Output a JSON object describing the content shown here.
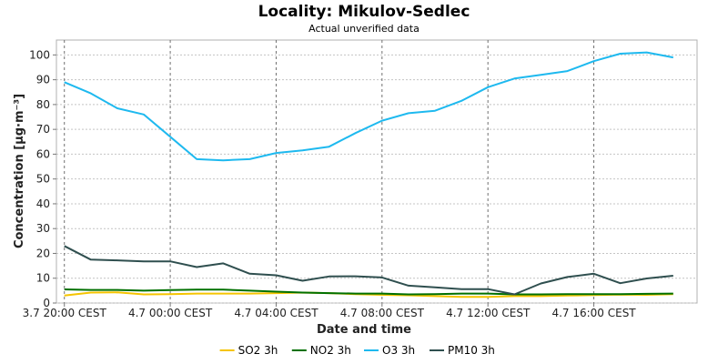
{
  "chart_data": {
    "type": "line",
    "title": "Locality: Mikulov-Sedlec",
    "subtitle": "Actual unverified data",
    "xlabel": "Date and time",
    "ylabel": "Concentration [µg·m⁻³]",
    "x_ticks": [
      {
        "label": "3.7 20:00 CEST",
        "hour": 0
      },
      {
        "label": "4.7 00:00 CEST",
        "hour": 4
      },
      {
        "label": "4.7 04:00 CEST",
        "hour": 8
      },
      {
        "label": "4.7 08:00 CEST",
        "hour": 12
      },
      {
        "label": "4.7 12:00 CEST",
        "hour": 16
      },
      {
        "label": "4.7 16:00 CEST",
        "hour": 20
      }
    ],
    "xlim": [
      -0.3,
      23.9
    ],
    "ylim": [
      0,
      106
    ],
    "y_ticks": [
      0,
      10,
      20,
      30,
      40,
      50,
      60,
      70,
      80,
      90,
      100
    ],
    "grid": true,
    "legend_position": "bottom",
    "x": [
      0,
      1,
      2,
      3,
      4,
      5,
      6,
      7,
      8,
      9,
      10,
      11,
      12,
      13,
      14,
      15,
      16,
      17,
      18,
      19,
      20,
      21,
      22,
      23
    ],
    "series": [
      {
        "name": "SO2 3h",
        "color": "#f5c400",
        "values": [
          3.0,
          4.2,
          4.3,
          3.5,
          3.6,
          3.8,
          3.8,
          3.8,
          4.0,
          4.2,
          4.0,
          3.6,
          3.3,
          3.1,
          2.8,
          2.5,
          2.5,
          2.8,
          2.8,
          3.0,
          3.2,
          3.4,
          3.3,
          3.6
        ]
      },
      {
        "name": "NO2 3h",
        "color": "#007000",
        "values": [
          5.5,
          5.3,
          5.3,
          5.0,
          5.2,
          5.4,
          5.4,
          5.0,
          4.6,
          4.2,
          4.0,
          3.8,
          3.8,
          3.5,
          3.6,
          3.8,
          3.8,
          3.5,
          3.5,
          3.6,
          3.6,
          3.6,
          3.7,
          3.8
        ]
      },
      {
        "name": "O3 3h",
        "color": "#1eb9ef",
        "values": [
          89.0,
          84.5,
          78.5,
          76.0,
          67.0,
          58.0,
          57.5,
          58.0,
          60.5,
          61.5,
          63.0,
          68.5,
          73.5,
          76.5,
          77.5,
          81.5,
          87.0,
          90.5,
          92.0,
          93.5,
          97.5,
          100.5,
          101.0,
          99.0
        ]
      },
      {
        "name": "PM10 3h",
        "color": "#2f4f4f",
        "values": [
          23.0,
          17.5,
          17.2,
          16.8,
          16.8,
          14.5,
          16.0,
          11.8,
          11.2,
          9.0,
          10.7,
          10.8,
          10.3,
          7.0,
          6.3,
          5.6,
          5.6,
          3.5,
          7.9,
          10.5,
          11.8,
          8.0,
          9.9,
          11.0
        ]
      }
    ]
  }
}
